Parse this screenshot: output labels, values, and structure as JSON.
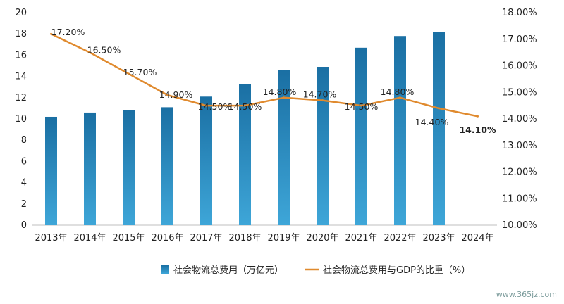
{
  "chart_data": {
    "type": "bar",
    "categories": [
      "2013年",
      "2014年",
      "2015年",
      "2016年",
      "2017年",
      "2018年",
      "2019年",
      "2020年",
      "2021年",
      "2022年",
      "2023年",
      "2024年"
    ],
    "series": [
      {
        "name": "社会物流总费用（万亿元）",
        "type": "bar",
        "axis": "left",
        "values": [
          10.2,
          10.6,
          10.8,
          11.1,
          12.1,
          13.3,
          14.6,
          14.9,
          16.7,
          17.8,
          18.2,
          null
        ]
      },
      {
        "name": "社会物流总费用与GDP的比重（%）",
        "type": "line",
        "axis": "right",
        "values": [
          17.2,
          16.5,
          15.7,
          14.9,
          14.5,
          14.5,
          14.8,
          14.7,
          14.5,
          14.8,
          14.4,
          14.1
        ],
        "labels": [
          "17.20%",
          "16.50%",
          "15.70%",
          "14.90%",
          "14.50%",
          "14.50%",
          "14.80%",
          "14.70%",
          "14.50%",
          "14.80%",
          "14.40%",
          "14.10%"
        ]
      }
    ],
    "y_left": {
      "ylim": [
        0,
        20
      ],
      "ticks": [
        "0",
        "2",
        "4",
        "6",
        "8",
        "10",
        "12",
        "14",
        "16",
        "18",
        "20"
      ]
    },
    "y_right": {
      "ylim": [
        10,
        18
      ],
      "ticks": [
        "10.00%",
        "11.00%",
        "12.00%",
        "13.00%",
        "14.00%",
        "15.00%",
        "16.00%",
        "17.00%",
        "18.00%"
      ]
    },
    "grid": false,
    "legend": "bottom",
    "colors": {
      "bar_top": "#1a6fa3",
      "bar_bottom": "#3ea6d8",
      "line": "#e08a2e"
    }
  },
  "watermark": "www.365jz.com"
}
